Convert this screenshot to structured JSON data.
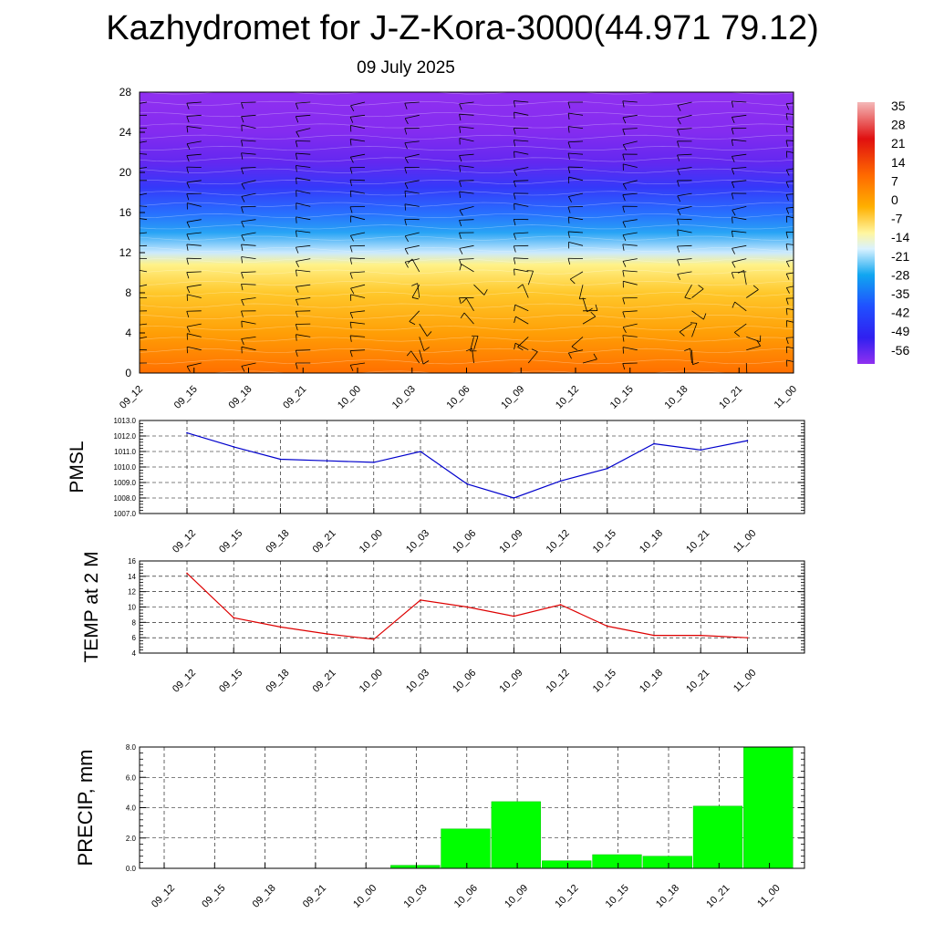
{
  "header": {
    "title": "Kazhydromet for J-Z-Kora-3000(44.971 79.12)",
    "date": "09 July 2025"
  },
  "time_labels": [
    "09_12",
    "09_15",
    "09_18",
    "09_21",
    "10_00",
    "10_03",
    "10_06",
    "10_09",
    "10_12",
    "10_15",
    "10_18",
    "10_21",
    "11_00"
  ],
  "chart_data": [
    {
      "type": "heatmap",
      "title": "",
      "x_categories": [
        "09_12",
        "09_15",
        "09_18",
        "09_21",
        "10_00",
        "10_03",
        "10_06",
        "10_09",
        "10_12",
        "10_15",
        "10_18",
        "10_21",
        "11_00"
      ],
      "y_ticks": [
        0,
        4,
        8,
        12,
        16,
        20,
        24,
        28
      ],
      "ylim": [
        0,
        28
      ],
      "colorbar_labels": [
        "35",
        "28",
        "21",
        "14",
        "7",
        "0",
        "-7",
        "-14",
        "-21",
        "-28",
        "-35",
        "-42",
        "-49",
        "-56"
      ],
      "colorbar_range": [
        -56,
        35
      ],
      "temperature_profile": [
        {
          "y": 0,
          "t": 20
        },
        {
          "y": 4,
          "t": 12
        },
        {
          "y": 8,
          "t": 3
        },
        {
          "y": 10.8,
          "t": -6
        },
        {
          "y": 12,
          "t": -15
        },
        {
          "y": 14,
          "t": -26
        },
        {
          "y": 16,
          "t": -35
        },
        {
          "y": 18.5,
          "t": -45
        },
        {
          "y": 21,
          "t": -53
        },
        {
          "y": 24,
          "t": -58
        },
        {
          "y": 28,
          "t": -60
        }
      ],
      "wind_barbs": true
    },
    {
      "type": "line",
      "ylabel": "PMSL",
      "categories": [
        "09_12",
        "09_15",
        "09_18",
        "09_21",
        "10_00",
        "10_03",
        "10_06",
        "10_09",
        "10_12",
        "10_15",
        "10_18",
        "10_21",
        "11_00"
      ],
      "values": [
        1012.2,
        1011.3,
        1010.5,
        1010.4,
        1010.3,
        1011.0,
        1008.9,
        1008.0,
        1009.1,
        1009.9,
        1011.5,
        1011.1,
        1011.7
      ],
      "ylim": [
        1007.0,
        1013.0
      ],
      "y_ticks": [
        "1007.0",
        "1008.0",
        "1009.0",
        "1010.0",
        "1011.0",
        "1012.0",
        "1013.0"
      ],
      "color": "#0000cc",
      "grid": true
    },
    {
      "type": "line",
      "ylabel": "TEMP at 2 M",
      "categories": [
        "09_12",
        "09_15",
        "09_18",
        "09_21",
        "10_00",
        "10_03",
        "10_06",
        "10_09",
        "10_12",
        "10_15",
        "10_18",
        "10_21",
        "11_00"
      ],
      "values": [
        14.4,
        8.6,
        7.4,
        6.5,
        5.8,
        10.9,
        10.0,
        8.8,
        10.3,
        7.5,
        6.3,
        6.3,
        6.0
      ],
      "ylim": [
        4,
        16
      ],
      "y_ticks": [
        "4",
        "6",
        "8",
        "10",
        "12",
        "14",
        "16"
      ],
      "color": "#dd0000",
      "grid": true
    },
    {
      "type": "bar",
      "ylabel": "PRECIP, mm",
      "categories": [
        "09_12",
        "09_15",
        "09_18",
        "09_21",
        "10_00",
        "10_03",
        "10_06",
        "10_09",
        "10_12",
        "10_15",
        "10_18",
        "10_21",
        "11_00"
      ],
      "values": [
        0,
        0,
        0,
        0,
        0,
        0.2,
        2.6,
        4.4,
        0.5,
        0.9,
        0.8,
        4.1,
        8.0
      ],
      "ylim": [
        0,
        8.0
      ],
      "y_ticks": [
        "0.0",
        "2.0",
        "4.0",
        "6.0",
        "8.0"
      ],
      "color": "#00ff00",
      "grid": true
    }
  ]
}
